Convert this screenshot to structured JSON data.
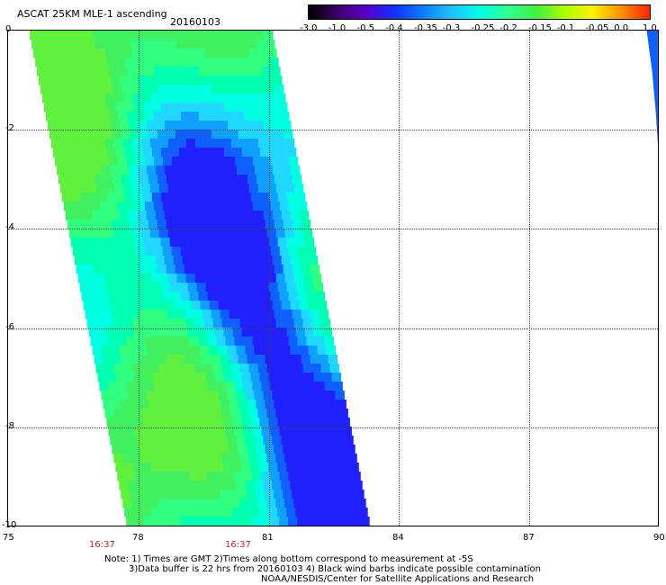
{
  "header": {
    "product": "ASCAT 25KM MLE-1 ascending",
    "date": "20160103"
  },
  "colorbar": {
    "labels": [
      "-3.0",
      "-1.0",
      "-0.5",
      "-0.4",
      "-0.35",
      "-0.3",
      "-0.25",
      "-0.2",
      "-0.15",
      "-0.1",
      "-0.05",
      "0.0",
      "1.0"
    ],
    "colors": [
      "#000000",
      "#3a0066",
      "#5a00c8",
      "#1030ff",
      "#0a7aff",
      "#20c0ff",
      "#00ffe8",
      "#30ff90",
      "#40f040",
      "#a8ff00",
      "#fff000",
      "#ff9000",
      "#ff2000"
    ]
  },
  "axes": {
    "x_ticks": [
      "75",
      "78",
      "81",
      "84",
      "87",
      "90"
    ],
    "y_ticks": [
      "0",
      "-2",
      "-4",
      "-6",
      "-8",
      "-10"
    ],
    "time_labels": [
      "16:37",
      "16:37"
    ]
  },
  "notes": {
    "line1": "Note: 1) Times are GMT 2)Times along bottom correspond to measurement at -5S",
    "line2": "3)Data buffer is 22 hrs from 20160103 4) Black wind barbs indicate possible contamination",
    "line3": "NOAA/NESDIS/Center for Satellite Applications and Research"
  },
  "map_data": {
    "lon_range": [
      75,
      90
    ],
    "lat_range": [
      0,
      -10
    ],
    "main_swath": {
      "lon_left_top": 75.5,
      "lon_right_top": 80.9,
      "lon_left_bottom": 77.8,
      "lon_right_bottom": 83.4
    },
    "edge_swath": {
      "lon_left_top": 89.7,
      "lat_bottom": -2.7
    }
  }
}
